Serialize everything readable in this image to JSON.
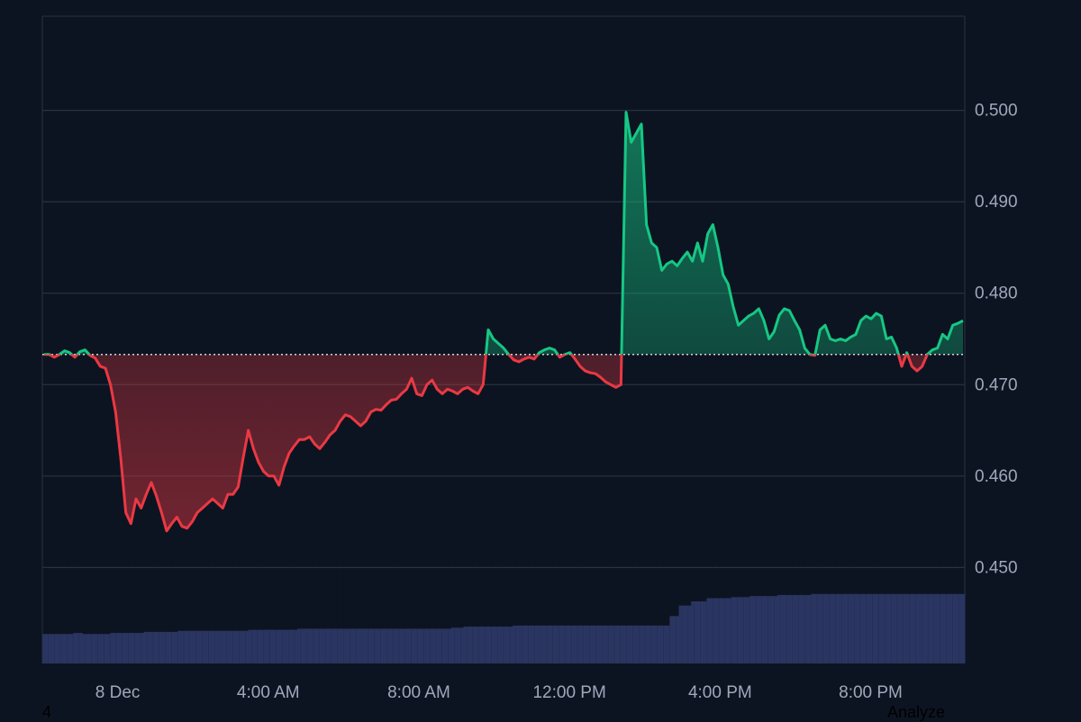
{
  "chart_data": {
    "type": "area",
    "baseline": 0.4733,
    "ylim": [
      0.4395,
      0.5103
    ],
    "y_ticks": [
      "0.500",
      "0.490",
      "0.480",
      "0.470",
      "0.460",
      "0.450"
    ],
    "x_ticks": [
      "8 Dec",
      "4:00 AM",
      "8:00 AM",
      "12:00 PM",
      "4:00 PM",
      "8:00 PM"
    ],
    "x_tick_hours": [
      2,
      6,
      10,
      14,
      18,
      22
    ],
    "x_range_hours": [
      0,
      24.5
    ],
    "colors": {
      "up": "#16c784",
      "down": "#ea3943",
      "volume": "#2a3561",
      "grid": "#2a3140",
      "tick_label": "#a1a7bb",
      "baseline": "#d0d4dc"
    },
    "series": [
      {
        "values": [
          0.4733,
          0.4733,
          0.473,
          0.4733,
          0.4737,
          0.4735,
          0.473,
          0.4736,
          0.4738,
          0.4732,
          0.4729,
          0.472,
          0.4718,
          0.47,
          0.467,
          0.462,
          0.456,
          0.4548,
          0.4575,
          0.4565,
          0.458,
          0.4593,
          0.4578,
          0.456,
          0.454,
          0.4548,
          0.4555,
          0.4545,
          0.4543,
          0.455,
          0.456,
          0.4565,
          0.457,
          0.4575,
          0.457,
          0.4565,
          0.458,
          0.458,
          0.4588,
          0.462,
          0.465,
          0.463,
          0.4615,
          0.4605,
          0.46,
          0.46,
          0.459,
          0.461,
          0.4625,
          0.4633,
          0.464,
          0.464,
          0.4643,
          0.4635,
          0.463,
          0.4637,
          0.4645,
          0.465,
          0.466,
          0.4667,
          0.4665,
          0.466,
          0.4655,
          0.466,
          0.467,
          0.4673,
          0.4672,
          0.4678,
          0.4683,
          0.4684,
          0.469,
          0.4695,
          0.4707,
          0.469,
          0.4688,
          0.47,
          0.4705,
          0.4695,
          0.469,
          0.4695,
          0.4693,
          0.469,
          0.4695,
          0.4697,
          0.4693,
          0.469,
          0.47,
          0.476,
          0.475,
          0.4745,
          0.474,
          0.4733,
          0.4727,
          0.4725,
          0.4728,
          0.473,
          0.4728,
          0.4735,
          0.4738,
          0.474,
          0.4738,
          0.473,
          0.4733,
          0.4735,
          0.4728,
          0.472,
          0.4715,
          0.4713,
          0.4712,
          0.4708,
          0.4703,
          0.47,
          0.4697,
          0.47,
          0.4998,
          0.4965,
          0.4975,
          0.4985,
          0.4875,
          0.4855,
          0.485,
          0.4825,
          0.4832,
          0.4835,
          0.483,
          0.4838,
          0.4845,
          0.4835,
          0.4855,
          0.4835,
          0.4865,
          0.4875,
          0.485,
          0.482,
          0.481,
          0.4785,
          0.4765,
          0.477,
          0.4775,
          0.4778,
          0.4783,
          0.477,
          0.475,
          0.4758,
          0.4776,
          0.4783,
          0.4781,
          0.477,
          0.476,
          0.474,
          0.4733,
          0.4732,
          0.476,
          0.4765,
          0.475,
          0.4748,
          0.475,
          0.4748,
          0.4752,
          0.4755,
          0.477,
          0.4775,
          0.4772,
          0.4778,
          0.4775,
          0.475,
          0.4752,
          0.474,
          0.472,
          0.4735,
          0.472,
          0.4715,
          0.472,
          0.4733,
          0.4738,
          0.474,
          0.4755,
          0.475,
          0.4765,
          0.4767,
          0.477
        ]
      }
    ],
    "volume": {
      "ylim": [
        0,
        1
      ],
      "breakpoints": [
        [
          0.0,
          0.28
        ],
        [
          0.8,
          0.29
        ],
        [
          1.1,
          0.28
        ],
        [
          1.8,
          0.29
        ],
        [
          2.7,
          0.3
        ],
        [
          3.6,
          0.31
        ],
        [
          5.0,
          0.31
        ],
        [
          5.5,
          0.32
        ],
        [
          6.8,
          0.33
        ],
        [
          8.3,
          0.33
        ],
        [
          10.9,
          0.34
        ],
        [
          11.2,
          0.35
        ],
        [
          12.5,
          0.36
        ],
        [
          13.6,
          0.36
        ],
        [
          16.7,
          0.45
        ],
        [
          16.9,
          0.55
        ],
        [
          17.2,
          0.59
        ],
        [
          17.6,
          0.62
        ],
        [
          18.3,
          0.63
        ],
        [
          18.8,
          0.64
        ],
        [
          19.5,
          0.65
        ],
        [
          20.4,
          0.66
        ],
        [
          21.0,
          0.66
        ],
        [
          21.8,
          0.66
        ],
        [
          24.5,
          0.66
        ]
      ]
    }
  },
  "footer": {
    "left": "4",
    "right": "Analyze"
  }
}
